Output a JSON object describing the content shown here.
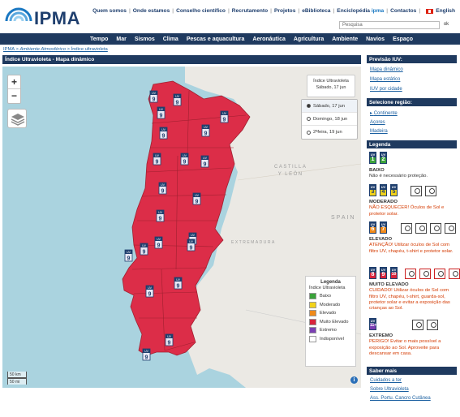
{
  "brand": {
    "name": "IPMA"
  },
  "topnav": {
    "links": [
      "Quem somos",
      "Onde estamos",
      "Conselho científico",
      "Recrutamento",
      "Projetos",
      "eBiblioteca",
      "Enciclopédia"
    ],
    "enciclopedia_suffix": "ipma",
    "contactos": "Contactos",
    "language": "English"
  },
  "search": {
    "placeholder": "Pesquisa",
    "button": "ok"
  },
  "mainnav": [
    "Tempo",
    "Mar",
    "Sismos",
    "Clima",
    "Pescas e aquacultura",
    "Aeronáutica",
    "Agricultura",
    "Ambiente",
    "Navios",
    "Espaço"
  ],
  "breadcrumb": [
    "IPMA",
    "Ambiente Atmosférico",
    "Índice ultravioleta"
  ],
  "panel": {
    "title": "Índice Ultravioleta - Mapa dinâmico"
  },
  "map": {
    "labels": {
      "castilla": "CASTILLA\nY LEÓN",
      "spain": "SPAIN",
      "extremadura": "EXTREMADURA"
    },
    "day_box": {
      "title": "Índice Ultravioleta",
      "date": "Sábado, 17 jun"
    },
    "days": [
      {
        "label": "Sábado, 17 jun",
        "selected": true
      },
      {
        "label": "Domingo, 18 jun",
        "selected": false
      },
      {
        "label": "2ªfeira, 19 jun",
        "selected": false
      }
    ],
    "legend": {
      "title": "Legenda",
      "subtitle": "Índice Ultravioleta",
      "items": [
        {
          "label": "Baixo",
          "color": "#3aa33a"
        },
        {
          "label": "Moderado",
          "color": "#f2d21a"
        },
        {
          "label": "Elevado",
          "color": "#f08a1a"
        },
        {
          "label": "Muito Elevado",
          "color": "#d9243c"
        },
        {
          "label": "Extremo",
          "color": "#7a3fb3"
        },
        {
          "label": "Indisponível",
          "color": "#ffffff"
        }
      ]
    },
    "scale": {
      "km": "50 km",
      "mi": "50 mi"
    },
    "region_fill": "#dc2d48",
    "uv_value": "9",
    "uv_text": "UV"
  },
  "sidebar": {
    "previsao_title": "Previsão IUV:",
    "previsao_links": [
      "Mapa dinâmico",
      "Mapa estático",
      "IUV por cidade"
    ],
    "regiao_title": "Selecione região:",
    "regiao_links": [
      "Continente",
      "Açores",
      "Madeira"
    ],
    "legenda_title": "Legenda",
    "levels": {
      "baixo": {
        "name": "BAIXO",
        "text": "Não é necessário proteção.",
        "icons": [
          "1",
          "2"
        ]
      },
      "moderado": {
        "name": "MODERADO",
        "text": "NÃO ESQUECER! Óculos de Sol e protetor solar.",
        "icons": [
          "3",
          "4",
          "5"
        ]
      },
      "elevado": {
        "name": "ELEVADO",
        "text": "ATENÇÃO! Utilizar óculos de Sol com filtro UV, chapéu, t-shirt e protetor solar.",
        "icons": [
          "6",
          "7"
        ]
      },
      "muito": {
        "name": "MUITO ELEVADO",
        "text": "CUIDADO! Utilizar óculos de Sol com filtro UV, chapéu, t-shirt, guarda-sol, protetor solar e evitar a exposição das crianças ao Sol.",
        "icons": [
          "8",
          "9",
          "10"
        ]
      },
      "extremo": {
        "name": "EXTREMO",
        "text": "PERIGO! Evitar o mais possível a exposição ao Sol. Aproveite para descansar em casa.",
        "icons": [
          "11+"
        ]
      }
    },
    "saber_title": "Saber mais",
    "saber_links": [
      "Cuidados a ter",
      "Sobre Ultravioleta",
      "Ass. Portu. Cancro Cutânea"
    ]
  }
}
